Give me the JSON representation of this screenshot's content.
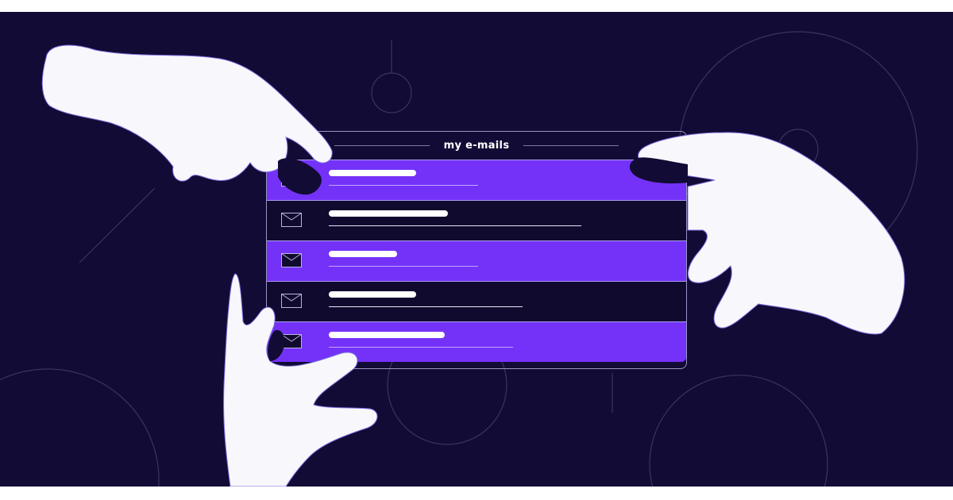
{
  "panel": {
    "title": "my e-mails",
    "icon": "envelope-icon",
    "rows": [
      {
        "style": "purple"
      },
      {
        "style": "dark"
      },
      {
        "style": "purple"
      },
      {
        "style": "dark"
      },
      {
        "style": "purple"
      }
    ]
  },
  "colors": {
    "background": "#120b35",
    "accent": "#7432f8",
    "hands": "#f8f7fc"
  }
}
